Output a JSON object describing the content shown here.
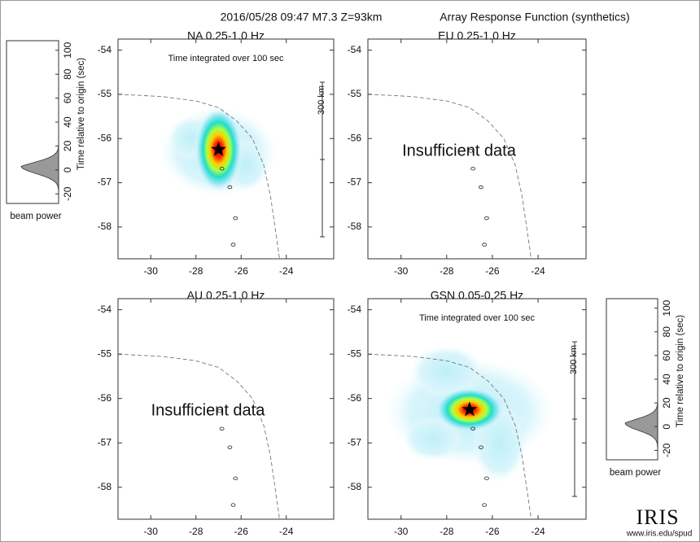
{
  "header": {
    "event": "2016/05/28 09:47  M7.3  Z=93km",
    "title": "Array Response Function (synthetics)"
  },
  "chart_data": [
    {
      "type": "map",
      "title": "NA  0.25-1.0 Hz",
      "annotation": "Time integrated over 100 sec",
      "scale_label": "300 km",
      "xlim": [
        -31.45,
        -21.9
      ],
      "ylim": [
        -58.72,
        -53.75
      ],
      "xticks": [
        -30,
        -28,
        -26,
        -24
      ],
      "yticks": [
        -54,
        -55,
        -56,
        -57,
        -58
      ]
    },
    {
      "type": "map",
      "title": "EU  0.25-1.0 Hz",
      "message": "Insufficient data",
      "xlim": [
        -31.45,
        -21.9
      ],
      "ylim": [
        -58.72,
        -53.75
      ],
      "xticks": [
        -30,
        -28,
        -26,
        -24
      ],
      "yticks": [
        -54,
        -55,
        -56,
        -57,
        -58
      ]
    },
    {
      "type": "map",
      "title": "AU  0.25-1.0 Hz",
      "message": "Insufficient data",
      "xlim": [
        -31.45,
        -21.9
      ],
      "ylim": [
        -58.72,
        -53.75
      ],
      "xticks": [
        -30,
        -28,
        -26,
        -24
      ],
      "yticks": [
        -54,
        -55,
        -56,
        -57,
        -58
      ]
    },
    {
      "type": "map",
      "title": "GSN  0.05-0.25 Hz",
      "annotation": "Time integrated over 100 sec",
      "scale_label": "300 km",
      "xlim": [
        -31.45,
        -21.9
      ],
      "ylim": [
        -58.72,
        -53.75
      ],
      "xticks": [
        -30,
        -28,
        -26,
        -24
      ],
      "yticks": [
        -54,
        -55,
        -56,
        -57,
        -58
      ]
    },
    {
      "type": "beam_power",
      "xlabel": "beam power",
      "ylabel": "Time relative to origin (sec)",
      "ylim": [
        -28,
        108
      ],
      "yticks": [
        100,
        80,
        60,
        40,
        20,
        0,
        -20
      ]
    },
    {
      "type": "beam_power",
      "xlabel": "beam power",
      "ylabel": "Time relative to origin (sec)",
      "ylim": [
        -28,
        108
      ],
      "yticks": [
        100,
        80,
        60,
        40,
        20,
        0,
        -20
      ]
    }
  ],
  "footer": {
    "logo": "IRIS",
    "url": "www.iris.edu/spud"
  }
}
